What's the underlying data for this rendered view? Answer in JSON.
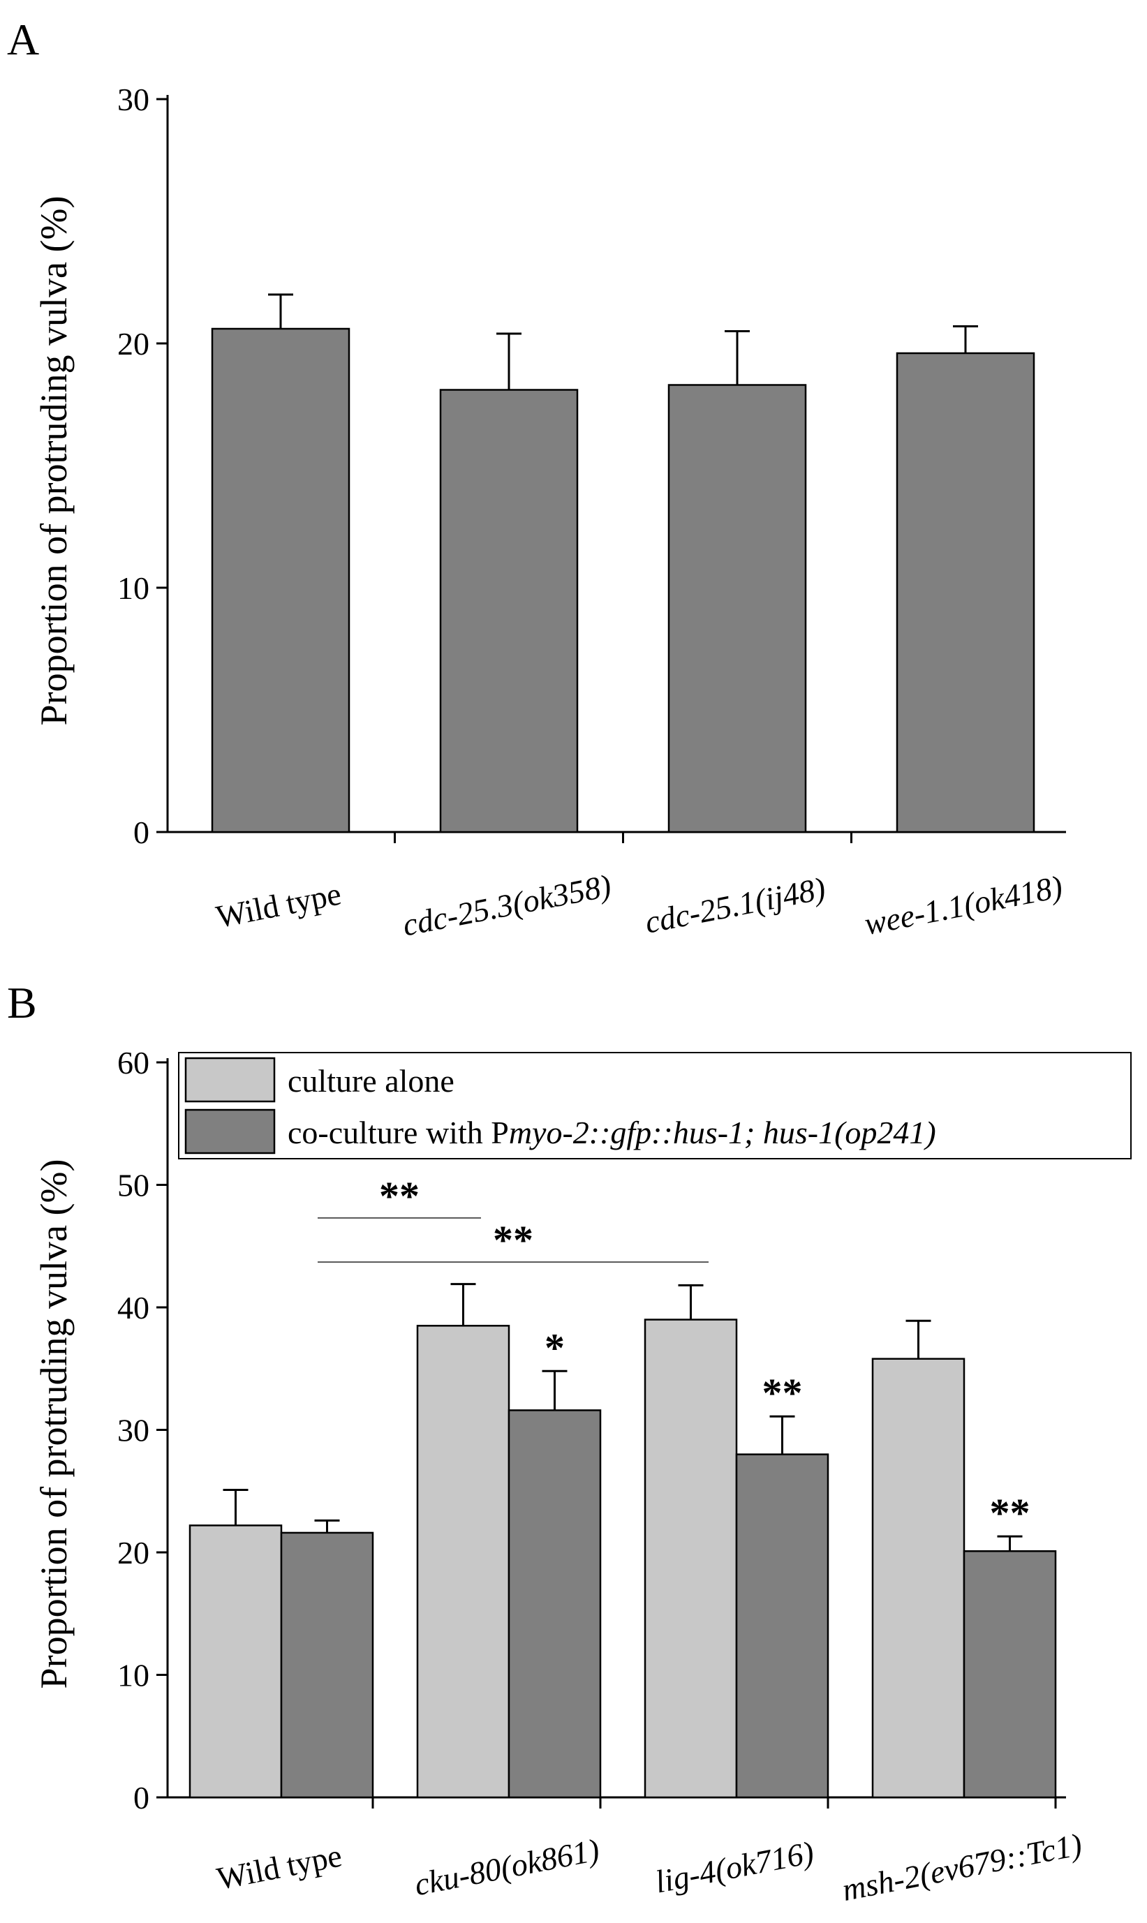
{
  "colors": {
    "light": "#c8c8c8",
    "dark": "#808080"
  },
  "chart_data": [
    {
      "panel": "A",
      "type": "bar",
      "ylabel": "Proportion of protruding vulva (%)",
      "ylim": [
        0,
        30
      ],
      "yticks": [
        0,
        10,
        20,
        30
      ],
      "categories": [
        {
          "label": "Wild type",
          "italic": false
        },
        {
          "label": "cdc-25.3(ok358)",
          "italic": true
        },
        {
          "label": "cdc-25.1(ij48)",
          "italic": true
        },
        {
          "label": "wee-1.1(ok418)",
          "italic": true
        }
      ],
      "series": [
        {
          "values": [
            20.6,
            18.1,
            18.3,
            19.6
          ],
          "errors": [
            1.4,
            2.3,
            2.2,
            1.1
          ]
        }
      ]
    },
    {
      "panel": "B",
      "type": "bar",
      "ylabel": "Proportion of protruding vulva (%)",
      "ylim": [
        0,
        60
      ],
      "yticks": [
        0,
        10,
        20,
        30,
        40,
        50,
        60
      ],
      "legend": "top",
      "categories": [
        {
          "label": "Wild type",
          "italic": false
        },
        {
          "label": "cku-80(ok861)",
          "italic": true
        },
        {
          "label": "lig-4(ok716)",
          "italic": true
        },
        {
          "label": "msh-2(ev679::Tc1)",
          "italic": true
        }
      ],
      "series": [
        {
          "name": "culture alone",
          "values": [
            22.2,
            38.5,
            39.0,
            35.8
          ],
          "errors": [
            2.9,
            3.4,
            2.8,
            3.1
          ]
        },
        {
          "name_parts": [
            "co-culture with P",
            "myo-2::gfp::hus-1; hus-1(op241)"
          ],
          "values": [
            21.6,
            31.6,
            28.0,
            20.1
          ],
          "errors": [
            1.0,
            3.2,
            3.1,
            1.2
          ]
        }
      ],
      "annotations": [
        {
          "text": "**",
          "series": 1,
          "category": 3
        },
        {
          "text": "*",
          "series": 1,
          "category": 1
        },
        {
          "text": "**",
          "series": 1,
          "category": 2
        }
      ],
      "brackets": [
        {
          "text": "**",
          "from_category": 0,
          "to_category": 1,
          "y": 47.3
        },
        {
          "text": "**",
          "from_category": 0,
          "to_category": 2,
          "y": 43.7
        }
      ]
    }
  ]
}
